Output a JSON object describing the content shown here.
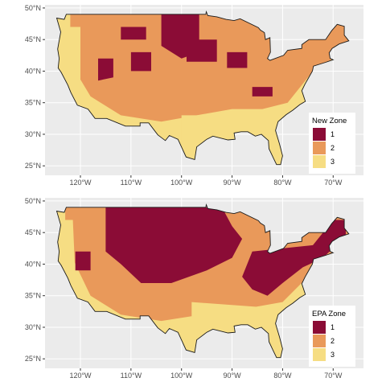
{
  "colors": {
    "panel_bg": "#ebebeb",
    "grid": "#ffffff",
    "zone_1": "#8b0c36",
    "zone_2": "#e9995a",
    "zone_3": "#f6dd83",
    "border": "#1a1a1a"
  },
  "y_ticks": [
    "25°N",
    "30°N",
    "35°N",
    "40°N",
    "45°N",
    "50°N"
  ],
  "x_ticks": [
    "120°W",
    "110°W",
    "100°W",
    "90°W",
    "80°W",
    "70°W"
  ],
  "panels": [
    {
      "legend": {
        "title": "New Zone",
        "items": [
          {
            "label": "1",
            "color": "#8b0c36"
          },
          {
            "label": "2",
            "color": "#e9995a"
          },
          {
            "label": "3",
            "color": "#f6dd83"
          }
        ]
      }
    },
    {
      "legend": {
        "title": "EPA Zone",
        "items": [
          {
            "label": "1",
            "color": "#8b0c36"
          },
          {
            "label": "2",
            "color": "#e9995a"
          },
          {
            "label": "3",
            "color": "#f6dd83"
          }
        ]
      }
    }
  ],
  "chart_data": [
    {
      "type": "choropleth-map",
      "region": "Contiguous United States",
      "fill_variable": "New Zone",
      "categories": [
        "1",
        "2",
        "3"
      ],
      "x_ticks": [
        "120°W",
        "110°W",
        "100°W",
        "90°W",
        "80°W",
        "70°W"
      ],
      "y_ticks": [
        "25°N",
        "30°N",
        "35°N",
        "40°N",
        "45°N",
        "50°N"
      ],
      "xlim": [
        -127,
        -64
      ],
      "ylim": [
        23.5,
        50.5
      ],
      "legend_position": "right",
      "grid": true
    },
    {
      "type": "choropleth-map",
      "region": "Contiguous United States",
      "fill_variable": "EPA Zone",
      "categories": [
        "1",
        "2",
        "3"
      ],
      "x_ticks": [
        "120°W",
        "110°W",
        "100°W",
        "90°W",
        "80°W",
        "70°W"
      ],
      "y_ticks": [
        "25°N",
        "30°N",
        "35°N",
        "40°N",
        "45°N",
        "50°N"
      ],
      "xlim": [
        -127,
        -64
      ],
      "ylim": [
        23.5,
        50.5
      ],
      "legend_position": "right",
      "grid": true
    }
  ]
}
